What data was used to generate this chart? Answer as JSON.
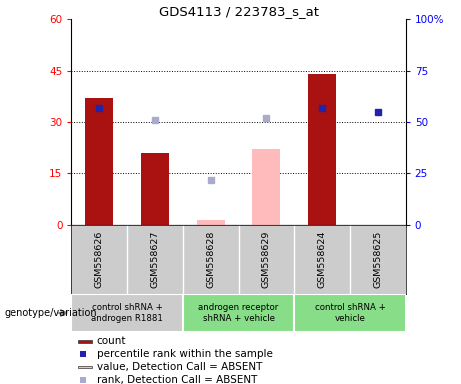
{
  "title": "GDS4113 / 223783_s_at",
  "samples": [
    "GSM558626",
    "GSM558627",
    "GSM558628",
    "GSM558629",
    "GSM558624",
    "GSM558625"
  ],
  "counts": [
    37,
    21,
    null,
    null,
    44,
    null
  ],
  "counts_absent": [
    null,
    null,
    1.5,
    22,
    null,
    null
  ],
  "percentile_present": [
    34,
    null,
    null,
    null,
    34,
    33
  ],
  "percentile_absent_rank": [
    null,
    30.5,
    13,
    31,
    null,
    null
  ],
  "ylim_left": [
    0,
    60
  ],
  "ylim_right": [
    0,
    100
  ],
  "yticks_left": [
    0,
    15,
    30,
    45,
    60
  ],
  "yticks_right": [
    0,
    25,
    50,
    75,
    100
  ],
  "ytick_labels_left": [
    "0",
    "15",
    "30",
    "45",
    "60"
  ],
  "ytick_labels_right": [
    "0",
    "25",
    "50",
    "75",
    "100%"
  ],
  "bar_color_present": "#aa1111",
  "bar_color_absent": "#ffbbbb",
  "dot_color_present": "#2222aa",
  "dot_color_absent": "#aaaacc",
  "groups": [
    {
      "label": "control shRNA +\nandrogen R1881",
      "color": "#cccccc",
      "start": 0,
      "end": 2
    },
    {
      "label": "androgen receptor\nshRNA + vehicle",
      "color": "#88dd88",
      "start": 2,
      "end": 4
    },
    {
      "label": "control shRNA +\nvehicle",
      "color": "#88dd88",
      "start": 4,
      "end": 6
    }
  ],
  "legend_items": [
    {
      "label": "count",
      "color": "#aa1111",
      "type": "bar"
    },
    {
      "label": "percentile rank within the sample",
      "color": "#2222aa",
      "type": "dot"
    },
    {
      "label": "value, Detection Call = ABSENT",
      "color": "#ffbbbb",
      "type": "bar"
    },
    {
      "label": "rank, Detection Call = ABSENT",
      "color": "#aaaacc",
      "type": "dot"
    }
  ],
  "genotype_label": "genotype/variation",
  "sample_bg": "#cccccc",
  "plot_bg_color": "#ffffff",
  "bar_width": 0.5
}
